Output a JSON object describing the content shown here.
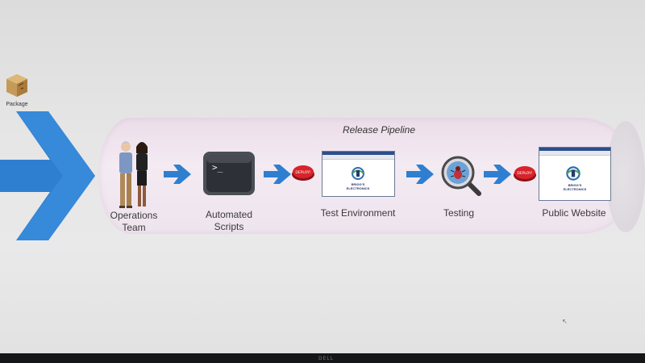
{
  "desktop": {
    "icon_label": "Package"
  },
  "pipeline": {
    "title": "Release Pipeline",
    "stages": [
      {
        "label": "Operations Team"
      },
      {
        "label": "Automated Scripts"
      },
      {
        "label": "Test Environment"
      },
      {
        "label": "Testing"
      },
      {
        "label": "Public Website"
      }
    ],
    "deploy_label": "DEPLOY!",
    "company_logo_text": "BRIGG'S ELECTRONICS"
  },
  "monitor": {
    "brand": "DELL"
  },
  "colors": {
    "arrow_blue": "#2f7fd0",
    "deploy_red": "#d8232a",
    "browser_bar": "#2b4f8c"
  }
}
